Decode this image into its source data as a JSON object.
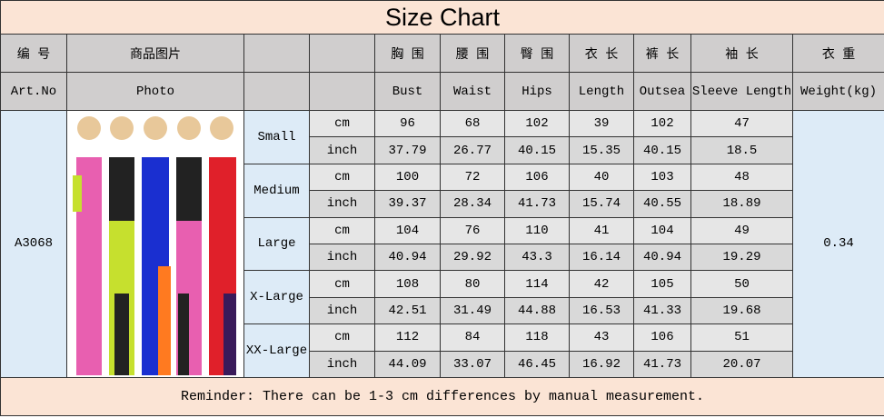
{
  "title": "Size Chart",
  "header_cn": {
    "art_no": "编 号",
    "photo": "商品图片",
    "measures": [
      "胸 围",
      "腰 围",
      "臀 围",
      "衣 长",
      "裤 长",
      "袖 长"
    ],
    "weight": "衣 重"
  },
  "header_en": {
    "art_no": "Art.No",
    "photo": "Photo",
    "measures": [
      "Bust",
      "Waist",
      "Hips",
      "Length",
      "Outsea",
      "Sleeve Length"
    ],
    "weight": "Weight(kg)"
  },
  "art_no": "A3068",
  "weight": 0.34,
  "sizes": [
    {
      "name": "Small",
      "rows": [
        {
          "unit": "cm",
          "values": [
            96,
            68,
            102,
            39,
            102,
            47
          ]
        },
        {
          "unit": "inch",
          "values": [
            37.79,
            26.77,
            40.15,
            15.35,
            40.15,
            18.5
          ]
        }
      ]
    },
    {
      "name": "Medium",
      "rows": [
        {
          "unit": "cm",
          "values": [
            100,
            72,
            106,
            40,
            103,
            48
          ]
        },
        {
          "unit": "inch",
          "values": [
            39.37,
            28.34,
            41.73,
            15.74,
            40.55,
            18.89
          ]
        }
      ]
    },
    {
      "name": "Large",
      "rows": [
        {
          "unit": "cm",
          "values": [
            104,
            76,
            110,
            41,
            104,
            49
          ]
        },
        {
          "unit": "inch",
          "values": [
            40.94,
            29.92,
            43.3,
            16.14,
            40.94,
            19.29
          ]
        }
      ]
    },
    {
      "name": "X-Large",
      "rows": [
        {
          "unit": "cm",
          "values": [
            108,
            80,
            114,
            42,
            105,
            50
          ]
        },
        {
          "unit": "inch",
          "values": [
            42.51,
            31.49,
            44.88,
            16.53,
            41.33,
            19.68
          ]
        }
      ]
    },
    {
      "name": "XX-Large",
      "rows": [
        {
          "unit": "cm",
          "values": [
            112,
            84,
            118,
            43,
            106,
            51
          ]
        },
        {
          "unit": "inch",
          "values": [
            44.09,
            33.07,
            46.45,
            16.92,
            41.73,
            20.07
          ]
        }
      ]
    }
  ],
  "reminder": "Reminder: There can be 1-3 cm differences by manual measurement."
}
